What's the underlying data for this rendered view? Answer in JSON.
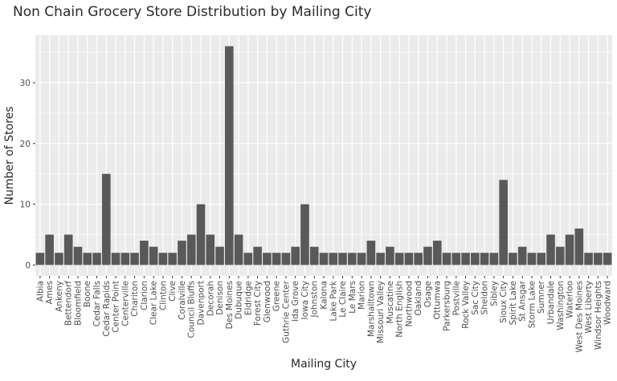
{
  "chart_data": {
    "type": "bar",
    "title": "Non Chain Grocery Store Distribution by Mailing City",
    "xlabel": "Mailing City",
    "ylabel": "Number of Stores",
    "ylim": [
      -1.8,
      37.8
    ],
    "yticks": [
      0,
      10,
      20,
      30
    ],
    "grid": true,
    "categories": [
      "Albia",
      "Ames",
      "Ankeny",
      "Bettendorf",
      "Bloomfield",
      "Boone",
      "Cedar Falls",
      "Cedar Rapids",
      "Center Point",
      "Centerville",
      "Chariton",
      "Clarion",
      "Clear Lake",
      "Clinton",
      "Clive",
      "Coralville",
      "Council Bluffs",
      "Davenport",
      "Decorah",
      "Denison",
      "Des Moines",
      "Dubuque",
      "Eldridge",
      "Forest City",
      "Glenwood",
      "Greene",
      "Guthrie Center",
      "Ida Grove",
      "Iowa City",
      "Johnston",
      "Kalona",
      "Lake Park",
      "Le Claire",
      "Le Mars",
      "Marion",
      "Marshalltown",
      "Missouri Valley",
      "Muscatine",
      "North English",
      "Northwood",
      "Oakland",
      "Osage",
      "Ottumwa",
      "Parkersburg",
      "Postville",
      "Rock Valley",
      "Sac City",
      "Sheldon",
      "Sibley",
      "Sioux City",
      "Spirit Lake",
      "St Ansgar",
      "Storm Lake",
      "Sumner",
      "Urbandale",
      "Washington",
      "Waterloo",
      "West Des Moines",
      "West Liberty",
      "Windsor Heights",
      "Woodward"
    ],
    "values": [
      2,
      5,
      2,
      5,
      3,
      2,
      2,
      15,
      2,
      2,
      2,
      4,
      3,
      2,
      2,
      4,
      5,
      10,
      5,
      3,
      36,
      5,
      2,
      3,
      2,
      2,
      2,
      3,
      10,
      3,
      2,
      2,
      2,
      2,
      2,
      4,
      2,
      3,
      2,
      2,
      2,
      3,
      4,
      2,
      2,
      2,
      2,
      2,
      2,
      14,
      2,
      3,
      2,
      2,
      5,
      3,
      5,
      6,
      2,
      2,
      2
    ]
  }
}
